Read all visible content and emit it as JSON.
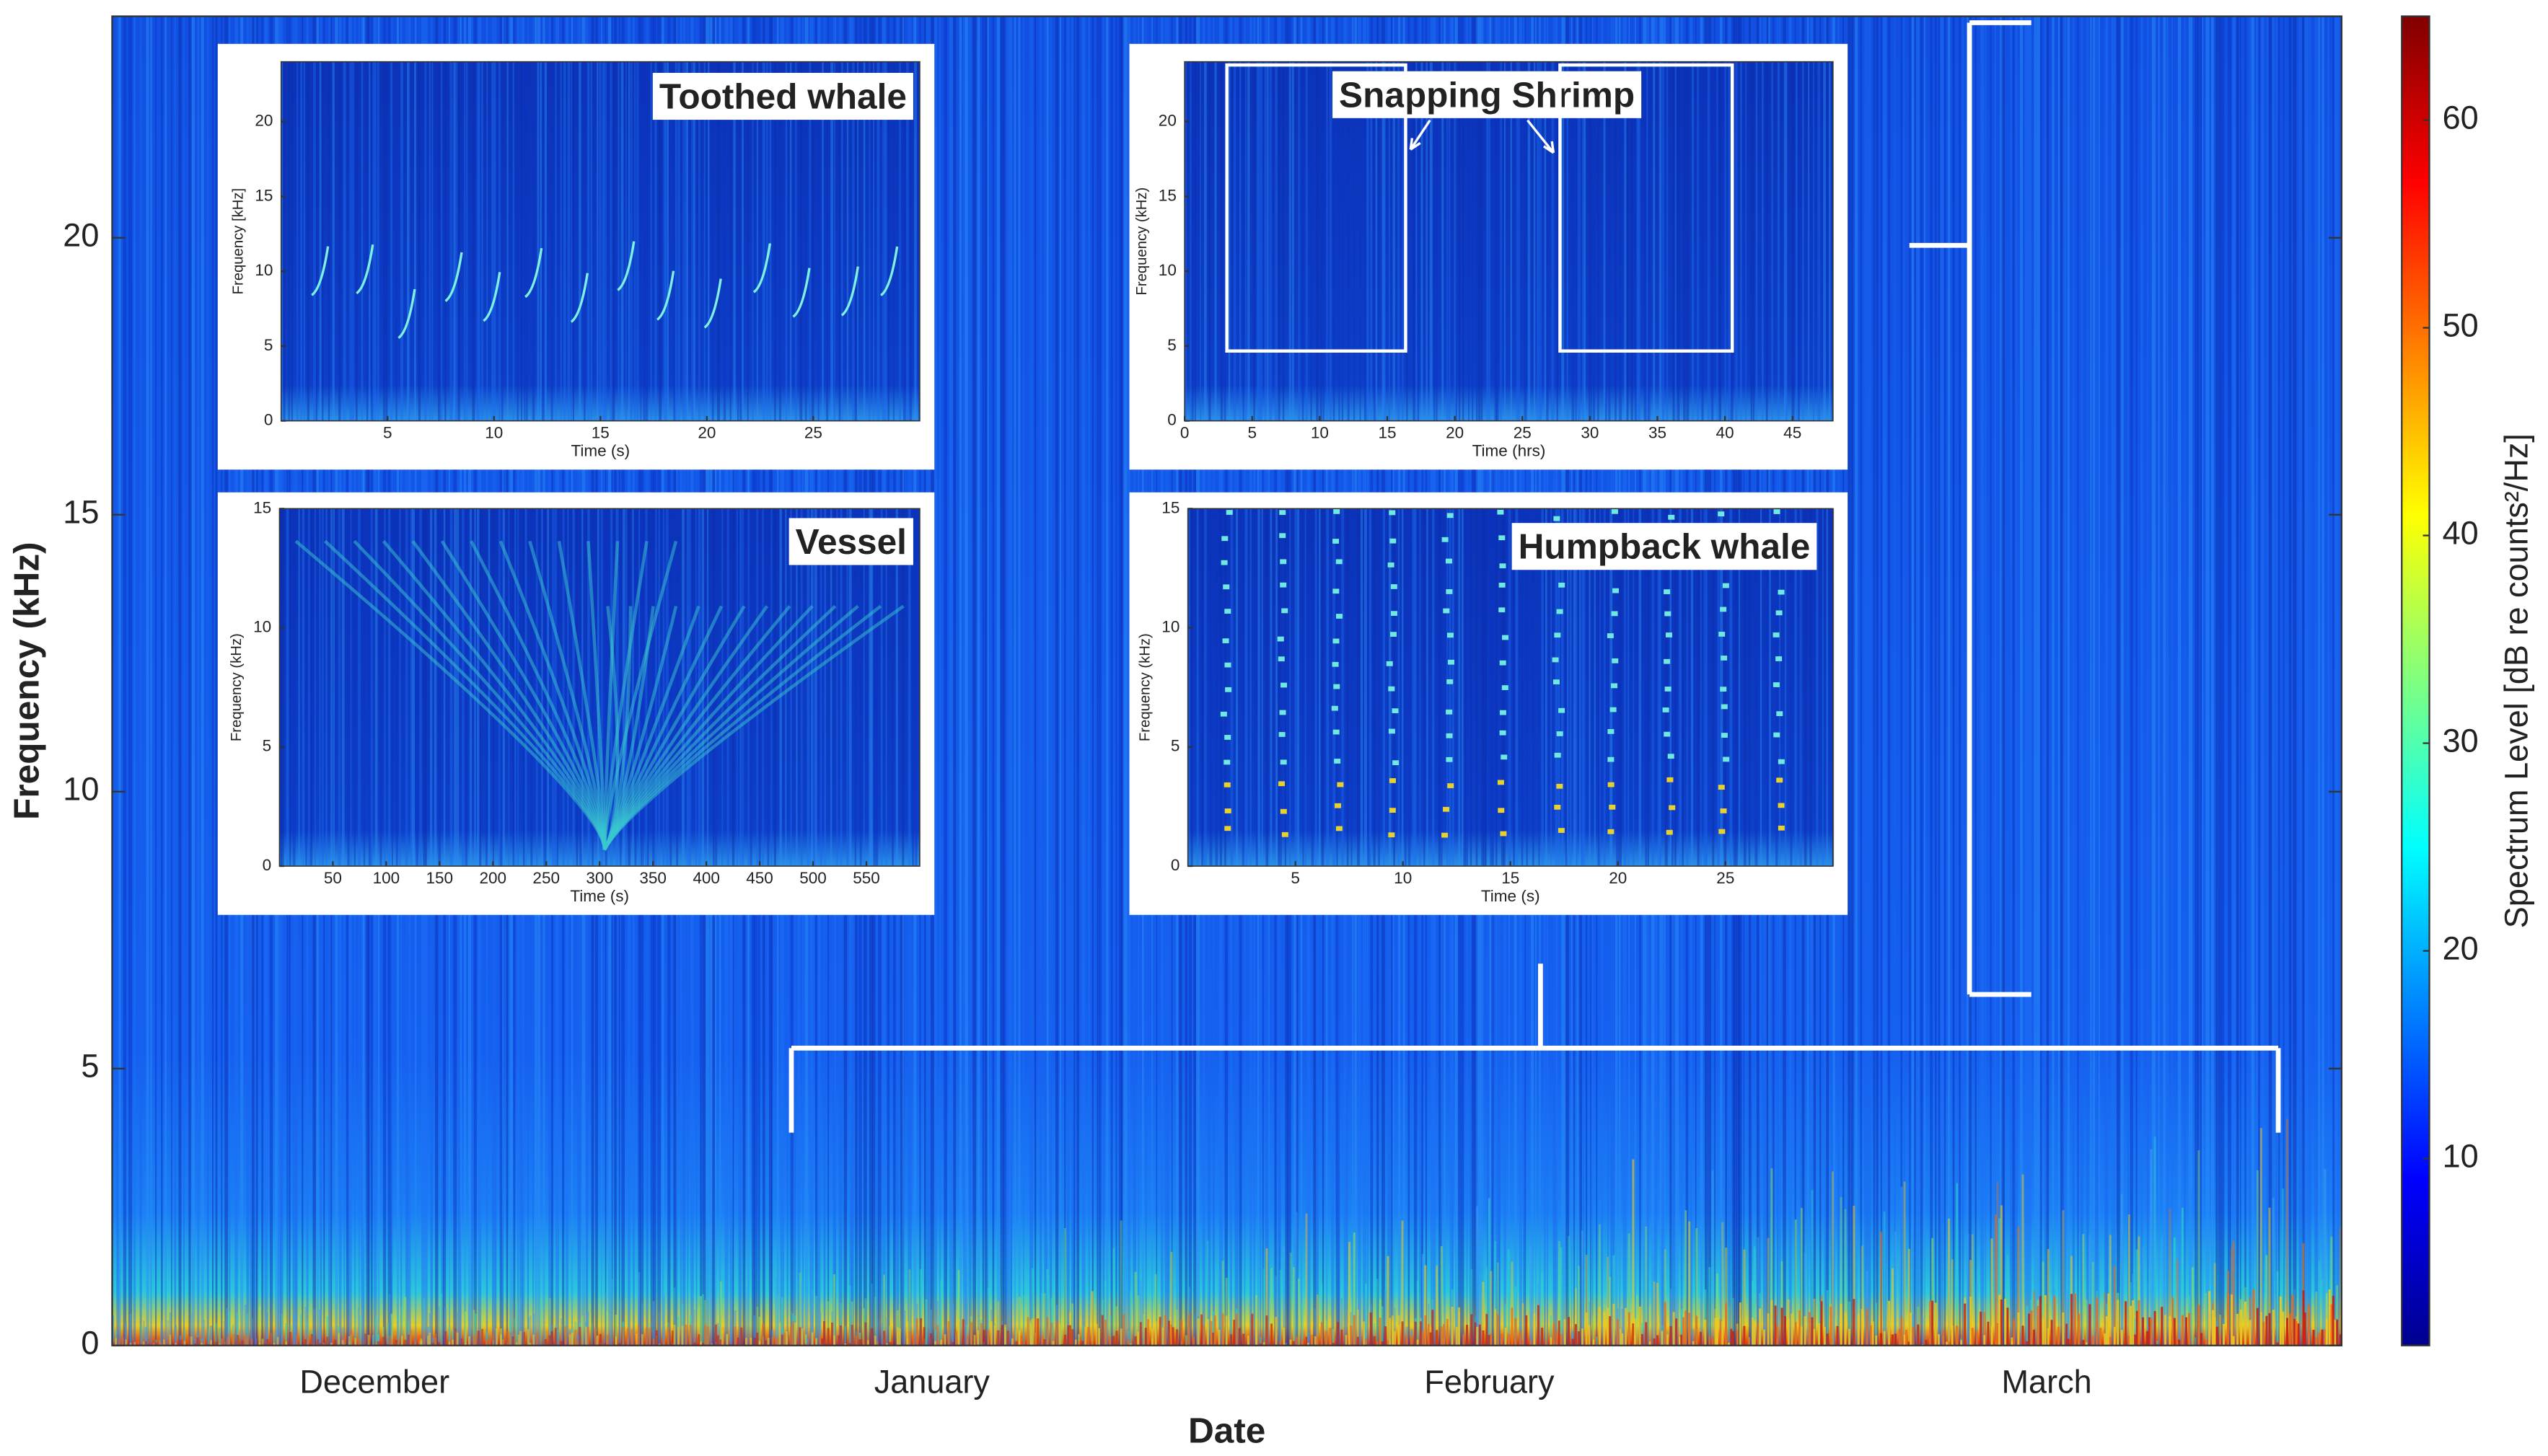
{
  "chart_data": [
    {
      "type": "heatmap",
      "x_label": "Date",
      "y_label": "Frequency (kHz)",
      "categories": [
        "December",
        "January",
        "February",
        "March"
      ],
      "ylim": [
        0,
        24
      ],
      "yticks": [
        0,
        5,
        10,
        15,
        20
      ],
      "colorbar": {
        "label": "Spectrum Level [dB re counts²/Hz]",
        "lim": [
          1,
          65
        ],
        "ticks": [
          10,
          20,
          30,
          40,
          50,
          60
        ]
      }
    },
    {
      "type": "heatmap",
      "title": "Toothed whale",
      "x_label": "Time (s)",
      "y_label": "Frequency [kHz]",
      "xlim": [
        0,
        30
      ],
      "xticks": [
        5,
        10,
        15,
        20,
        25
      ],
      "ylim": [
        0,
        24
      ],
      "yticks": [
        0,
        5,
        10,
        15,
        20
      ]
    },
    {
      "type": "heatmap",
      "title": "Snapping Shrimp",
      "x_label": "Time (hrs)",
      "y_label": "Frequency (kHz)",
      "xlim": [
        0,
        48
      ],
      "xticks": [
        0,
        5,
        10,
        15,
        20,
        25,
        30,
        35,
        40,
        45
      ],
      "ylim": [
        0,
        24
      ],
      "yticks": [
        0,
        5,
        10,
        15,
        20
      ]
    },
    {
      "type": "heatmap",
      "title": "Vessel",
      "x_label": "Time (s)",
      "y_label": "Frequency (kHz)",
      "xlim": [
        0,
        600
      ],
      "xticks": [
        50,
        100,
        150,
        200,
        250,
        300,
        350,
        400,
        450,
        500,
        550
      ],
      "ylim": [
        0,
        15
      ],
      "yticks": [
        0,
        5,
        10,
        15
      ]
    },
    {
      "type": "heatmap",
      "title": "Humpback whale",
      "x_label": "Time (s)",
      "y_label": "Frequency (kHz)",
      "xlim": [
        0,
        30
      ],
      "xticks": [
        5,
        10,
        15,
        20,
        25
      ],
      "ylim": [
        0,
        15
      ],
      "yticks": [
        0,
        5,
        10,
        15
      ]
    }
  ]
}
